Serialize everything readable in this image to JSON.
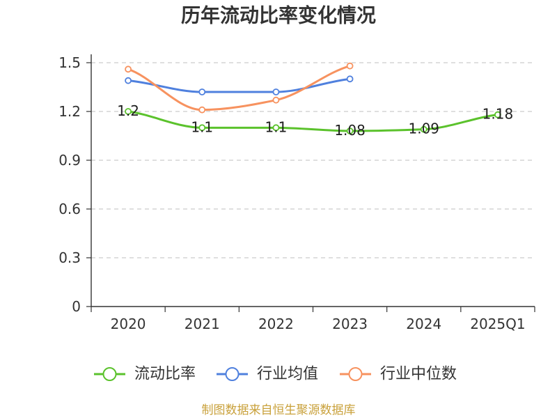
{
  "chart_data": {
    "type": "line",
    "title": "历年流动比率变化情况",
    "categories": [
      "2020",
      "2021",
      "2022",
      "2023",
      "2024",
      "2025Q1"
    ],
    "ylim": [
      0,
      1.5
    ],
    "yticks": [
      "0",
      "0.3",
      "0.6",
      "0.9",
      "1.2",
      "1.5"
    ],
    "xlabel": "",
    "ylabel": "",
    "grid": true,
    "legend": "bottom",
    "series": [
      {
        "name": "流动比率",
        "color": "#5BC22C",
        "values": [
          1.2,
          1.1,
          1.1,
          1.08,
          1.09,
          1.18
        ],
        "labels": [
          "1.2",
          "1.1",
          "1.1",
          "1.08",
          "1.09",
          "1.18"
        ]
      },
      {
        "name": "行业均值",
        "color": "#4F80DE",
        "values": [
          1.39,
          1.32,
          1.32,
          1.4,
          null,
          null
        ]
      },
      {
        "name": "行业中位数",
        "color": "#F7925F",
        "values": [
          1.46,
          1.21,
          1.27,
          1.48,
          null,
          null
        ]
      }
    ]
  },
  "source_note": "制图数据来自恒生聚源数据库",
  "colors": {
    "axis": "#333333",
    "grid": "#cccccc",
    "source_note": "#C9A13B"
  }
}
